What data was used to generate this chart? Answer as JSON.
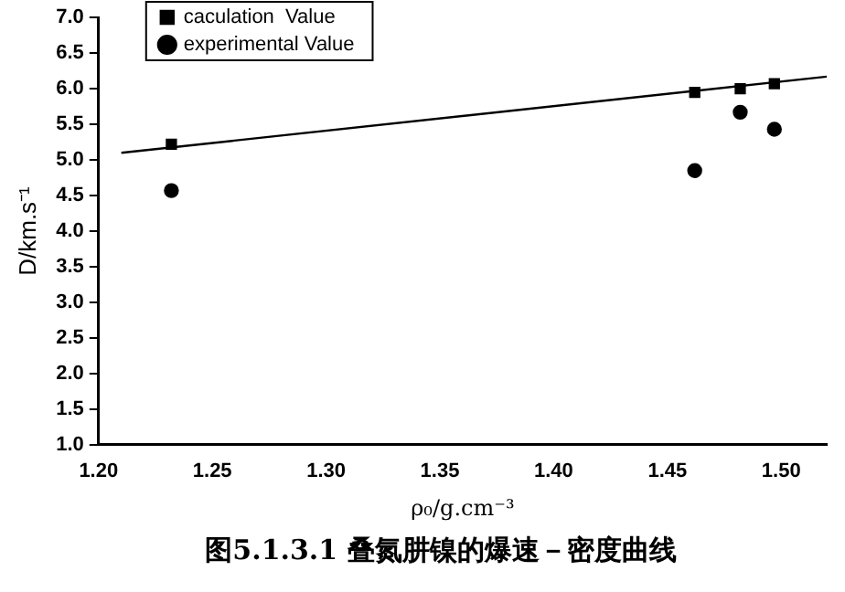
{
  "chart_data": {
    "type": "scatter",
    "xlabel": "ρ₀/g.cm⁻³",
    "ylabel": "D/km.s⁻¹",
    "xlim": [
      1.2,
      1.52
    ],
    "xticks": [
      {
        "value": 1.2,
        "label": "1.20"
      },
      {
        "value": 1.25,
        "label": "1.25"
      },
      {
        "value": 1.3,
        "label": "1.30"
      },
      {
        "value": 1.35,
        "label": "1.35"
      },
      {
        "value": 1.4,
        "label": "1.40"
      },
      {
        "value": 1.45,
        "label": "1.45"
      },
      {
        "value": 1.5,
        "label": "1.50"
      }
    ],
    "ylim": [
      1,
      7
    ],
    "yticks": [
      {
        "value": 1,
        "label": "1.0"
      },
      {
        "value": 1.5,
        "label": "1.5"
      },
      {
        "value": 2,
        "label": "2.0"
      },
      {
        "value": 2.5,
        "label": "2.5"
      },
      {
        "value": 3,
        "label": "3.0"
      },
      {
        "value": 3.5,
        "label": "3.5"
      },
      {
        "value": 4,
        "label": "4.0"
      },
      {
        "value": 4.5,
        "label": "4.5"
      },
      {
        "value": 5,
        "label": "5.0"
      },
      {
        "value": 5.5,
        "label": "5.5"
      },
      {
        "value": 6,
        "label": "6.0"
      },
      {
        "value": 6.5,
        "label": "6.5"
      },
      {
        "value": 7,
        "label": "7.0"
      }
    ],
    "grid": false,
    "legend": "top left",
    "series": [
      {
        "name": "caculation  Value",
        "type": "scatter",
        "marker": "square",
        "color": "#000000",
        "x": [
          1.232,
          1.462,
          1.482,
          1.497
        ],
        "values": [
          5.22,
          5.95,
          6.0,
          6.07
        ]
      },
      {
        "name": "experimental Value",
        "type": "scatter",
        "marker": "circle",
        "color": "#000000",
        "x": [
          1.232,
          1.462,
          1.482,
          1.497
        ],
        "values": [
          4.57,
          4.85,
          5.67,
          5.43
        ]
      },
      {
        "type": "line",
        "marker": "none",
        "color": "#000000",
        "x": [
          1.21,
          1.52
        ],
        "values": [
          5.1,
          6.17
        ]
      }
    ],
    "annotations": [
      "图5.1.3.1 叠氮肼镍的爆速－密度曲线"
    ]
  }
}
